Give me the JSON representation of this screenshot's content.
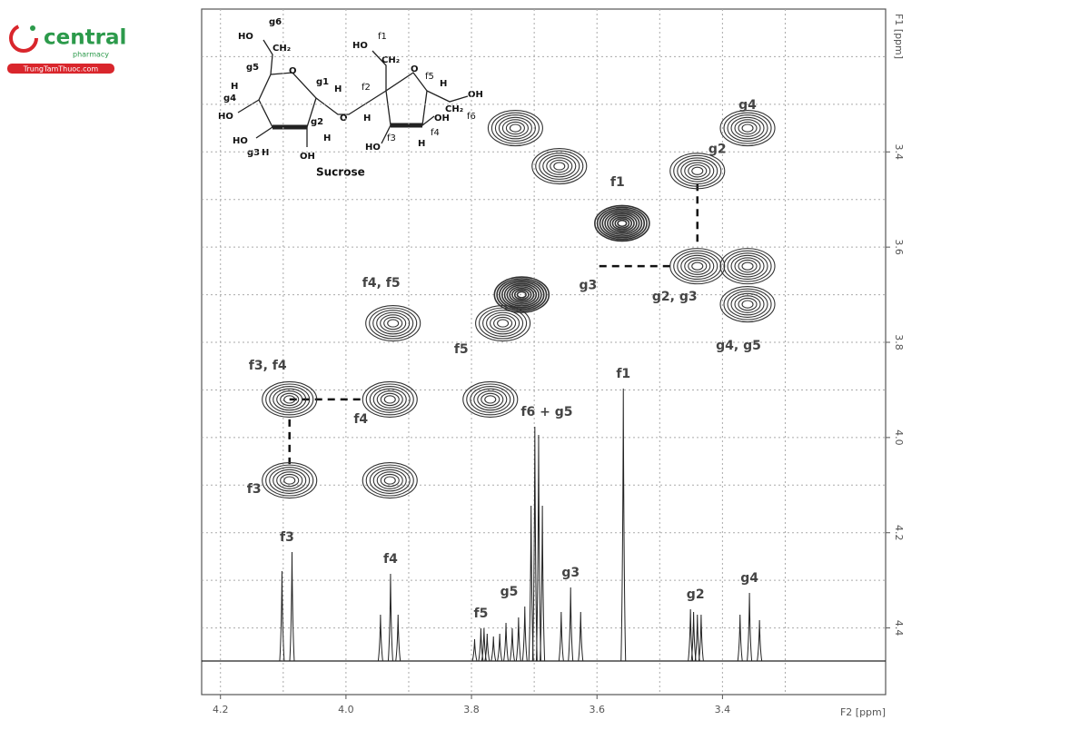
{
  "logo": {
    "brand": "central",
    "sub": "pharmacy",
    "site": "TrungTamThuoc.com"
  },
  "structure": {
    "labels": [
      "HO",
      "g6",
      "CH₂",
      "g5",
      "O",
      "g1",
      "H",
      "g4",
      "H",
      "HO",
      "g2",
      "HO",
      "g3",
      "H",
      "H",
      "OH",
      "Sucrose",
      "O",
      "HO",
      "f1",
      "CH₂",
      "f2",
      "O",
      "f5",
      "H",
      "OH",
      "CH₂",
      "f6",
      "H",
      "OH",
      "HO",
      "f3",
      "f4",
      "H"
    ]
  },
  "chart_data": {
    "type": "cosy",
    "xlabel": "F2 [ppm]",
    "ylabel": "F1 [ppm]",
    "xlim": [
      4.23,
      3.14
    ],
    "ylim": [
      3.1,
      4.54
    ],
    "xticks": [
      4.2,
      {
        "value": 4,
        "label": "4.0"
      },
      3.8,
      3.6,
      3.4
    ],
    "yticks": [
      3.4,
      3.6,
      3.8,
      {
        "value": 4,
        "label": "4.0"
      },
      4.2,
      4.4
    ],
    "xgrid_minor": [
      4.1,
      3.9,
      3.7,
      3.5,
      3.3
    ],
    "ygrid_minor": [
      3.2,
      3.3,
      3.5,
      3.7,
      3.9,
      4.1,
      4.3
    ],
    "grid": true,
    "color": "#333333",
    "peaks": [
      {
        "x": 3.36,
        "y": 3.35,
        "label": "g4"
      },
      {
        "x": 3.44,
        "y": 3.44,
        "label": "g2"
      },
      {
        "x": 3.56,
        "y": 3.55,
        "label": "f1"
      },
      {
        "x": 3.72,
        "y": 3.7,
        "label": "g3"
      },
      {
        "x": 3.44,
        "y": 3.64,
        "label": "g2, g3"
      },
      {
        "x": 3.36,
        "y": 3.64,
        "label": null
      },
      {
        "x": 3.36,
        "y": 3.72,
        "label": "g4, g5"
      },
      {
        "x": 3.925,
        "y": 3.76,
        "label": "f4, f5"
      },
      {
        "x": 3.77,
        "y": 3.92,
        "label": "f5"
      },
      {
        "x": 4.09,
        "y": 3.92,
        "label": "f3, f4"
      },
      {
        "x": 3.93,
        "y": 3.92,
        "label": "f4"
      },
      {
        "x": 4.09,
        "y": 4.09,
        "label": "f3"
      },
      {
        "x": 3.93,
        "y": 4.09,
        "label": null
      },
      {
        "x": 3.73,
        "y": 3.35,
        "label": null
      },
      {
        "x": 3.66,
        "y": 3.43,
        "label": null
      },
      {
        "x": 3.75,
        "y": 3.76,
        "label": null
      }
    ],
    "spectrum": {
      "x": [
        4.102,
        4.086,
        3.945,
        3.929,
        3.917,
        3.795,
        3.785,
        3.78,
        3.775,
        3.765,
        3.755,
        3.745,
        3.735,
        3.725,
        3.715,
        3.705,
        3.699,
        3.693,
        3.687,
        3.657,
        3.642,
        3.626,
        3.558,
        3.451,
        3.446,
        3.44,
        3.434,
        3.372,
        3.357,
        3.341
      ],
      "intensity": [
        33,
        40,
        17,
        32,
        17,
        8,
        12,
        12,
        10,
        9,
        10,
        14,
        12,
        16,
        20,
        57,
        86,
        83,
        57,
        18,
        27,
        18,
        100,
        19,
        18,
        17,
        17,
        17,
        25,
        15
      ]
    },
    "spectrum_labels": [
      {
        "text": "f3",
        "x": 4.094
      },
      {
        "text": "f4",
        "x": 3.929
      },
      {
        "text": "f5",
        "x": 3.785
      },
      {
        "text": "g5",
        "x": 3.74
      },
      {
        "text": "f6 + g5",
        "x": 3.68
      },
      {
        "text": "g3",
        "x": 3.642
      },
      {
        "text": "f1",
        "x": 3.558
      },
      {
        "text": "g2",
        "x": 3.443
      },
      {
        "text": "g4",
        "x": 3.357
      }
    ]
  }
}
